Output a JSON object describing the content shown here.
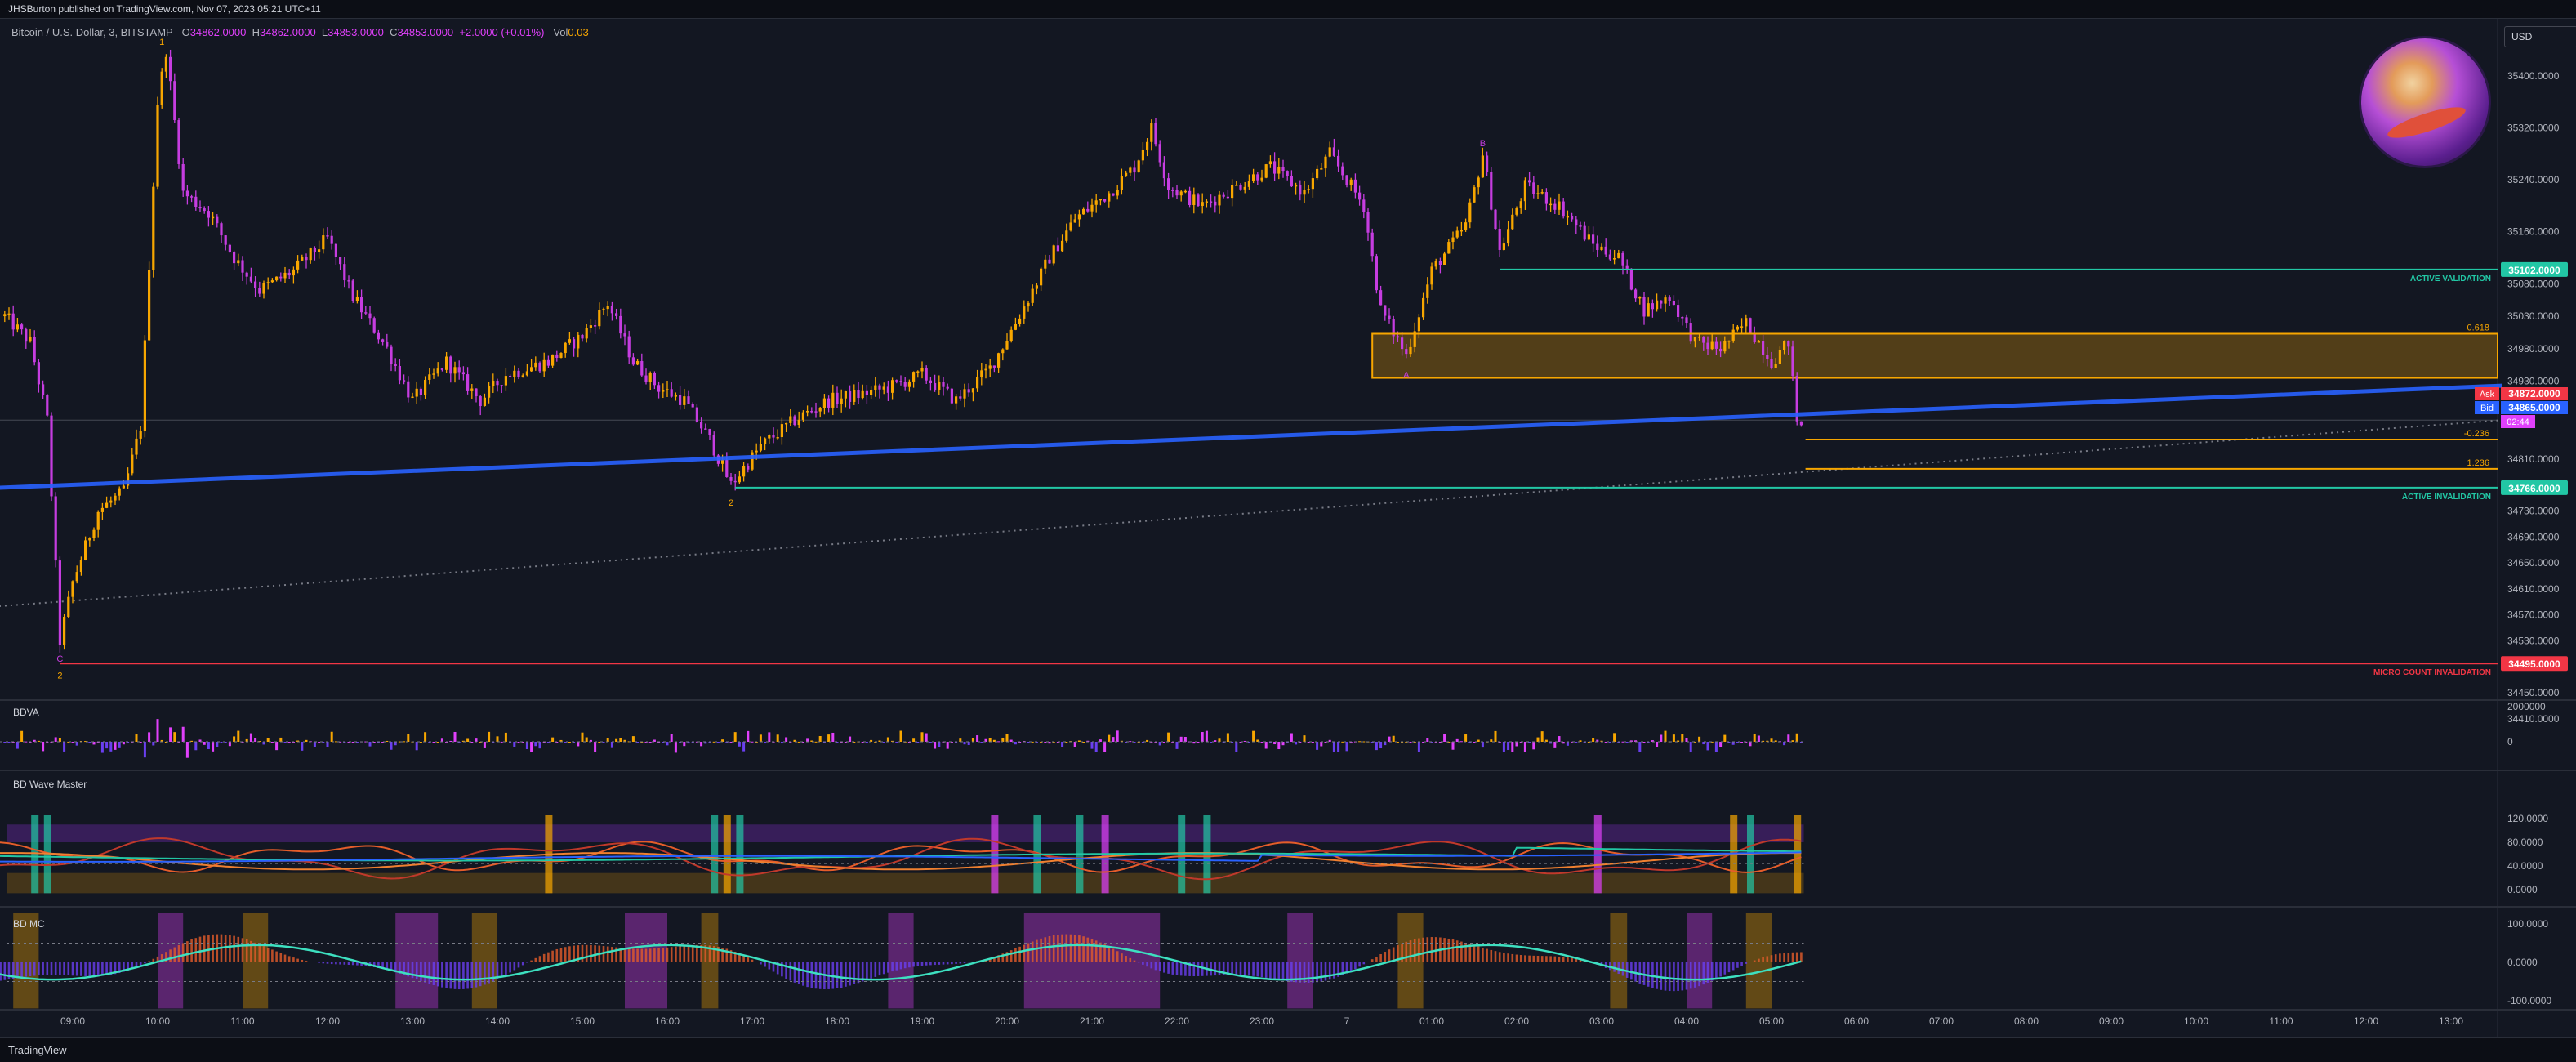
{
  "header": {
    "published": "JHSBurton published on TradingView.com, Nov 07, 2023 05:21 UTC+11"
  },
  "legend": {
    "symbol": "Bitcoin / U.S. Dollar, 3, BITSTAMP",
    "o_label": "O",
    "o": "34862.0000",
    "h_label": "H",
    "h": "34862.0000",
    "l_label": "L",
    "l": "34853.0000",
    "c_label": "C",
    "c": "34853.0000",
    "change": "+2.0000 (+0.01%)",
    "vol_label": "Vol",
    "vol": "0.03"
  },
  "currency": "USD",
  "footer": {
    "brand": "TradingView"
  },
  "colors": {
    "bull": "#f7a600",
    "bear": "#c63de0",
    "trend": "#2962ff",
    "validation": "#22c7a5",
    "invalidation_red": "#f23645"
  },
  "chart_data": [
    {
      "type": "line",
      "name": "price-pane",
      "title": "",
      "ylim": [
        34410,
        35460
      ],
      "y_ticks": [
        "35400.0000",
        "35320.0000",
        "35240.0000",
        "35160.0000",
        "35080.0000",
        "35030.0000",
        "34980.0000",
        "34930.0000",
        "34810.0000",
        "34730.0000",
        "34690.0000",
        "34650.0000",
        "34610.0000",
        "34570.0000",
        "34530.0000",
        "34450.0000",
        "34410.0000"
      ],
      "x_ticks": [
        "09:00",
        "10:00",
        "11:00",
        "12:00",
        "13:00",
        "14:00",
        "15:00",
        "16:00",
        "17:00",
        "18:00",
        "19:00",
        "20:00",
        "21:00",
        "22:00",
        "23:00",
        "7",
        "01:00",
        "02:00",
        "03:00",
        "04:00",
        "05:00",
        "06:00",
        "07:00",
        "08:00",
        "09:00",
        "10:00",
        "11:00",
        "12:00",
        "13:00"
      ],
      "x_hours": [
        9,
        10,
        11,
        12,
        13,
        14,
        15,
        16,
        17,
        18,
        19,
        20,
        21,
        22,
        23,
        24,
        25,
        26,
        27,
        28,
        29,
        30,
        31,
        32,
        33,
        34,
        35,
        36,
        37
      ],
      "price_path": [
        [
          8.2,
          35030
        ],
        [
          8.5,
          34990
        ],
        [
          8.7,
          34870
        ],
        [
          8.85,
          34530
        ],
        [
          9.0,
          34620
        ],
        [
          9.3,
          34730
        ],
        [
          9.6,
          34760
        ],
        [
          9.8,
          34860
        ],
        [
          10.0,
          35360
        ],
        [
          10.1,
          35440
        ],
        [
          10.3,
          35220
        ],
        [
          10.6,
          35190
        ],
        [
          10.9,
          35120
        ],
        [
          11.2,
          35070
        ],
        [
          11.6,
          35100
        ],
        [
          12.0,
          35150
        ],
        [
          12.3,
          35060
        ],
        [
          12.7,
          34980
        ],
        [
          13.0,
          34900
        ],
        [
          13.4,
          34960
        ],
        [
          13.8,
          34900
        ],
        [
          14.1,
          34940
        ],
        [
          14.6,
          34960
        ],
        [
          15.0,
          35000
        ],
        [
          15.3,
          35050
        ],
        [
          15.6,
          34960
        ],
        [
          15.9,
          34920
        ],
        [
          16.2,
          34900
        ],
        [
          16.5,
          34840
        ],
        [
          16.75,
          34770
        ],
        [
          17.1,
          34830
        ],
        [
          17.5,
          34870
        ],
        [
          17.9,
          34900
        ],
        [
          18.3,
          34910
        ],
        [
          18.6,
          34920
        ],
        [
          19.0,
          34940
        ],
        [
          19.4,
          34900
        ],
        [
          19.8,
          34950
        ],
        [
          20.1,
          35020
        ],
        [
          20.5,
          35120
        ],
        [
          20.8,
          35180
        ],
        [
          21.2,
          35220
        ],
        [
          21.5,
          35260
        ],
        [
          21.7,
          35320
        ],
        [
          21.9,
          35230
        ],
        [
          22.3,
          35200
        ],
        [
          22.7,
          35230
        ],
        [
          23.1,
          35260
        ],
        [
          23.5,
          35220
        ],
        [
          23.8,
          35280
        ],
        [
          24.2,
          35200
        ],
        [
          24.4,
          35040
        ],
        [
          24.7,
          34970
        ],
        [
          25.0,
          35100
        ],
        [
          25.4,
          35170
        ],
        [
          25.6,
          35280
        ],
        [
          25.8,
          35130
        ],
        [
          26.1,
          35230
        ],
        [
          26.5,
          35200
        ],
        [
          26.9,
          35140
        ],
        [
          27.2,
          35120
        ],
        [
          27.5,
          35040
        ],
        [
          27.8,
          35060
        ],
        [
          28.1,
          34990
        ],
        [
          28.4,
          34980
        ],
        [
          28.7,
          35020
        ],
        [
          29.0,
          34960
        ],
        [
          29.2,
          34990
        ],
        [
          29.3,
          34870
        ],
        [
          29.38,
          34855
        ]
      ],
      "wave_labels": [
        {
          "label": "1",
          "x_hour": 10.05,
          "price": 35448,
          "color": "bull"
        },
        {
          "label": "2",
          "x_hour": 16.75,
          "price": 34738,
          "color": "bull"
        },
        {
          "label": "C",
          "x_hour": 8.85,
          "price": 34498,
          "color": "bear"
        },
        {
          "label": "2",
          "x_hour": 8.85,
          "price": 34472,
          "color": "bull"
        },
        {
          "label": "B",
          "x_hour": 25.6,
          "price": 35292,
          "color": "bear"
        },
        {
          "label": "A",
          "x_hour": 24.7,
          "price": 34935,
          "color": "bear"
        }
      ],
      "zones": [
        {
          "from_hour": 24.3,
          "to_hour": 37.6,
          "low": 34935,
          "high": 35003,
          "color": "#f7a600"
        }
      ],
      "levels": [
        {
          "price": 35102,
          "text": "ACTIVE VALIDATION",
          "tag": "35102.0000",
          "color": "#22c7a5",
          "from_hour": 25.8
        },
        {
          "price": 34766,
          "text": "ACTIVE INVALIDATION",
          "tag": "34766.0000",
          "color": "#22c7a5",
          "from_hour": 16.8
        },
        {
          "price": 34495,
          "text": "MICRO COUNT INVALIDATION",
          "tag": "34495.0000",
          "color": "#f23645",
          "from_hour": 8.85
        }
      ],
      "fib_levels": [
        {
          "price": 35003,
          "label": "0.618"
        },
        {
          "price": 34840,
          "label": "-0.236"
        },
        {
          "price": 34795,
          "label": "1.236"
        }
      ],
      "bid_ask": [
        {
          "label": "Ask",
          "value": "34872.0000"
        },
        {
          "label": "Bid",
          "value": "34865.0000"
        },
        {
          "label": "",
          "value": "02:44"
        }
      ],
      "trendline": [
        [
          8.0,
          34765
        ],
        [
          37.6,
          34923
        ]
      ],
      "dotted_line": [
        [
          8.0,
          34582
        ],
        [
          37.6,
          34870
        ]
      ]
    },
    {
      "type": "bar",
      "name": "BDVA",
      "title": "BDVA",
      "y_ticks": [
        "2000000",
        "0"
      ]
    },
    {
      "type": "line",
      "name": "BD Wave Master",
      "title": "BD Wave Master",
      "ylim": [
        -10,
        130
      ],
      "y_ticks": [
        "120.0000",
        "80.0000",
        "40.0000",
        "0.0000"
      ]
    },
    {
      "type": "area",
      "name": "BD MC",
      "title": "BD MC",
      "ylim": [
        -130,
        120
      ],
      "y_ticks": [
        "100.0000",
        "0.0000",
        "-100.0000"
      ]
    }
  ]
}
